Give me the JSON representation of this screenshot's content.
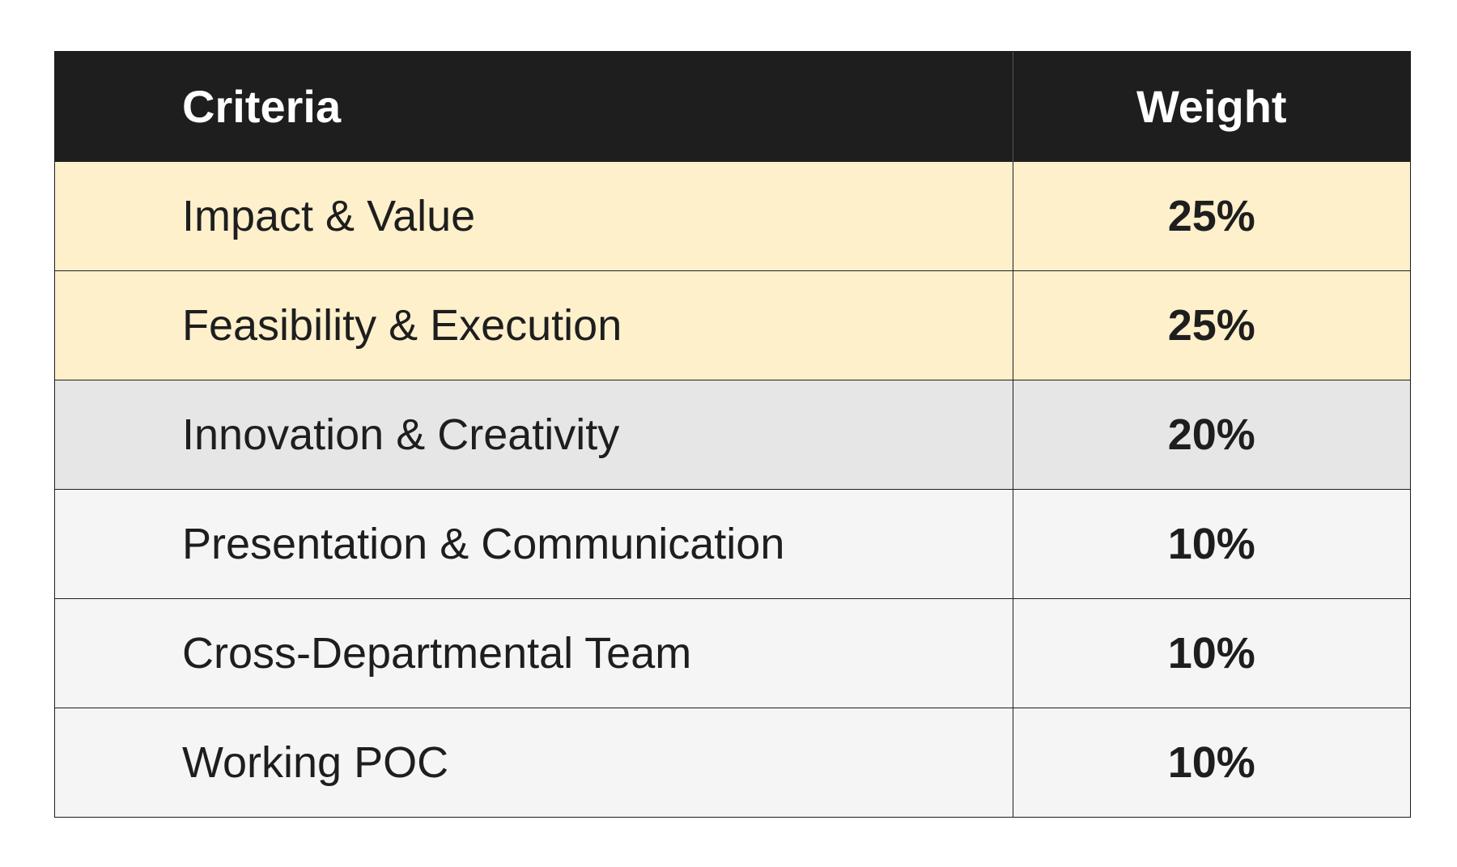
{
  "table": {
    "headers": {
      "criteria": "Criteria",
      "weight": "Weight"
    },
    "rows": [
      {
        "criteria": "Impact & Value",
        "weight": "25%",
        "tone": "high"
      },
      {
        "criteria": "Feasibility & Execution",
        "weight": "25%",
        "tone": "high"
      },
      {
        "criteria": "Innovation & Creativity",
        "weight": "20%",
        "tone": "mid"
      },
      {
        "criteria": "Presentation & Communication",
        "weight": "10%",
        "tone": "low"
      },
      {
        "criteria": "Cross-Departmental Team",
        "weight": "10%",
        "tone": "low"
      },
      {
        "criteria": "Working POC",
        "weight": "10%",
        "tone": "low"
      }
    ]
  },
  "colors": {
    "header_background": "#1e1e1e",
    "header_text": "#ffffff",
    "row_high": "#fff0cc",
    "row_mid": "#e6e6e6",
    "row_low": "#f5f5f5",
    "border": "#1e1e1e"
  }
}
